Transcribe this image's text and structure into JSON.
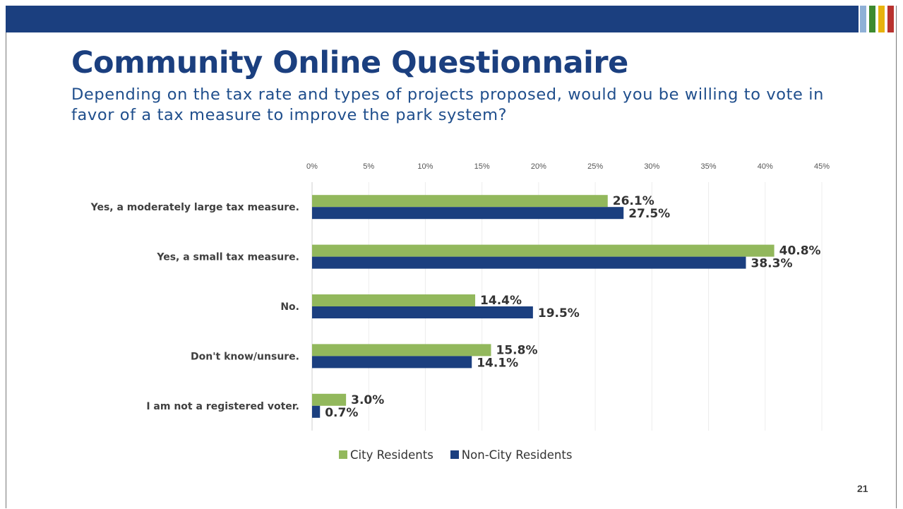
{
  "slide": {
    "title": "Community Online Questionnaire",
    "subtitle": "Depending on the tax rate and types of projects proposed, would you be willing to vote in favor of a tax measure to improve the park system?",
    "page_number": "21",
    "header_color": "#1b3f7f",
    "stripe_colors": [
      "#8fb0d6",
      "#3d8a2f",
      "#e8b30c",
      "#b8322e"
    ]
  },
  "chart_data": {
    "type": "bar",
    "orientation": "horizontal",
    "categories": [
      "Yes, a moderately large tax measure.",
      "Yes, a small tax measure.",
      "No.",
      "Don't know/unsure.",
      "I am not a registered voter."
    ],
    "series": [
      {
        "name": "City Residents",
        "color": "#92b85c",
        "values": [
          26.1,
          40.8,
          14.4,
          15.8,
          3.0
        ],
        "labels": [
          "26.1%",
          "40.8%",
          "14.4%",
          "15.8%",
          "3.0%"
        ]
      },
      {
        "name": "Non-City Residents",
        "color": "#1b3f7f",
        "values": [
          27.5,
          38.3,
          19.5,
          14.1,
          0.7
        ],
        "labels": [
          "27.5%",
          "38.3%",
          "19.5%",
          "14.1%",
          "0.7%"
        ]
      }
    ],
    "x_ticks": [
      "0%",
      "5%",
      "10%",
      "15%",
      "20%",
      "25%",
      "30%",
      "35%",
      "40%",
      "45%"
    ],
    "xlim": [
      0,
      45
    ],
    "x_axis_position": "top",
    "grid": true,
    "legend_position": "bottom"
  }
}
